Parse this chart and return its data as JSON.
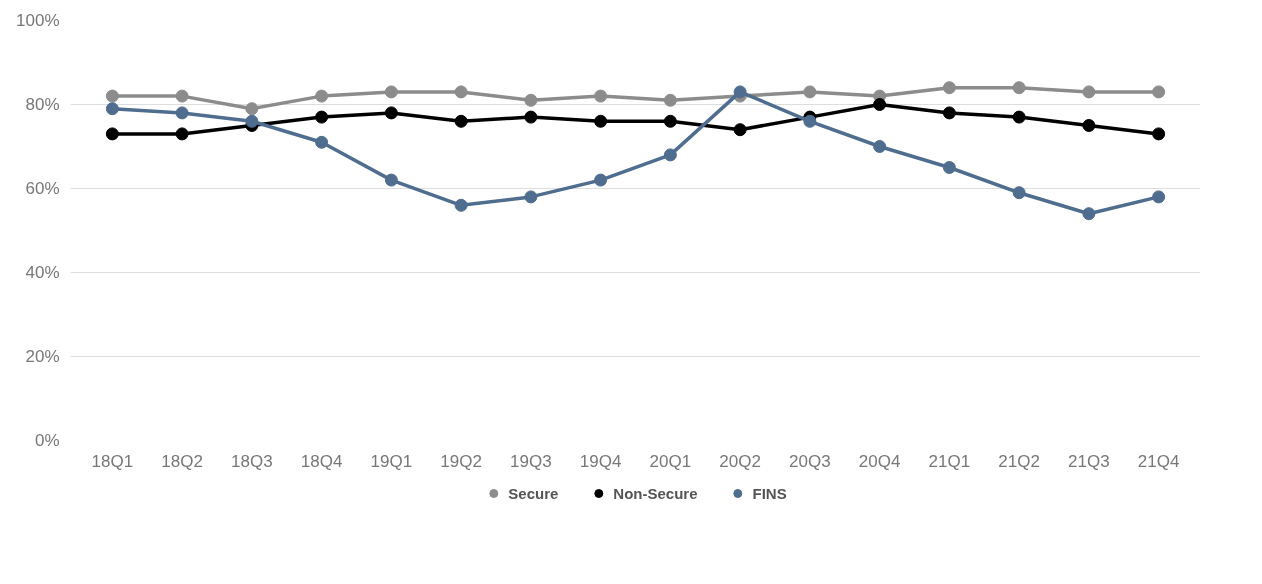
{
  "chart_data": {
    "type": "line",
    "categories": [
      "18Q1",
      "18Q2",
      "18Q3",
      "18Q4",
      "19Q1",
      "19Q2",
      "19Q3",
      "19Q4",
      "20Q1",
      "20Q2",
      "20Q3",
      "20Q4",
      "21Q1",
      "21Q2",
      "21Q3",
      "21Q4"
    ],
    "series": [
      {
        "name": "Secure",
        "color": "#8c8c8c",
        "values": [
          82,
          82,
          79,
          82,
          83,
          83,
          81,
          82,
          81,
          82,
          83,
          82,
          84,
          84,
          83,
          83
        ]
      },
      {
        "name": "Non-Secure",
        "color": "#000000",
        "values": [
          73,
          73,
          75,
          77,
          78,
          76,
          77,
          76,
          76,
          74,
          77,
          80,
          78,
          77,
          75,
          73
        ]
      },
      {
        "name": "FINS",
        "color": "#4f6d8f",
        "values": [
          79,
          78,
          76,
          71,
          62,
          56,
          58,
          62,
          68,
          83,
          76,
          70,
          65,
          59,
          54,
          58
        ]
      }
    ],
    "ylim": [
      0,
      100
    ],
    "yticks": [
      {
        "value": 0,
        "label": "0%"
      },
      {
        "value": 20,
        "label": "20%"
      },
      {
        "value": 40,
        "label": "40%"
      },
      {
        "value": 60,
        "label": "60%"
      },
      {
        "value": 80,
        "label": "80%"
      },
      {
        "value": 100,
        "label": "100%"
      }
    ],
    "grid": "y",
    "legend": "bottom",
    "marker": "circle",
    "line_style": "solid"
  }
}
